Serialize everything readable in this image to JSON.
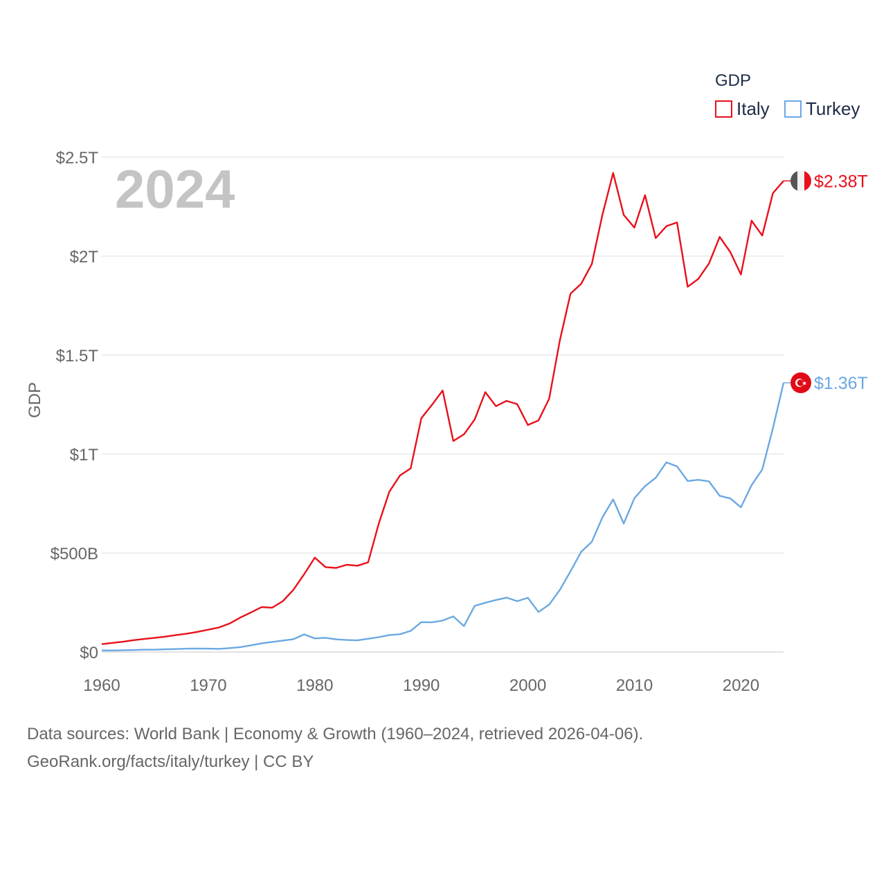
{
  "chart_data": {
    "type": "line",
    "title": "",
    "ylabel": "GDP",
    "xlabel": "",
    "current_year": "2024",
    "legend_title": "GDP",
    "xlim": [
      1960,
      2024
    ],
    "ylim": [
      0,
      2500
    ],
    "y_unit": "billion USD",
    "y_ticks": [
      0,
      500,
      1000,
      1500,
      2000,
      2500
    ],
    "y_tick_labels": [
      "$0",
      "$500B",
      "$1T",
      "$1.5T",
      "$2T",
      "$2.5T"
    ],
    "x_ticks": [
      1960,
      1970,
      1980,
      1990,
      2000,
      2010,
      2020
    ],
    "x_tick_labels": [
      "1960",
      "1970",
      "1980",
      "1990",
      "2000",
      "2010",
      "2020"
    ],
    "grid": true,
    "legend_position": "top-right",
    "years": [
      1960,
      1961,
      1962,
      1963,
      1964,
      1965,
      1966,
      1967,
      1968,
      1969,
      1970,
      1971,
      1972,
      1973,
      1974,
      1975,
      1976,
      1977,
      1978,
      1979,
      1980,
      1981,
      1982,
      1983,
      1984,
      1985,
      1986,
      1987,
      1988,
      1989,
      1990,
      1991,
      1992,
      1993,
      1994,
      1995,
      1996,
      1997,
      1998,
      1999,
      2000,
      2001,
      2002,
      2003,
      2004,
      2005,
      2006,
      2007,
      2008,
      2009,
      2010,
      2011,
      2012,
      2013,
      2014,
      2015,
      2016,
      2017,
      2018,
      2019,
      2020,
      2021,
      2022,
      2023,
      2024
    ],
    "series": [
      {
        "name": "Italy",
        "color": "#e8101a",
        "end_label": "$2.38T",
        "flag_icon": "italy-flag-icon",
        "values": [
          40,
          46,
          52,
          60,
          66,
          72,
          78,
          86,
          93,
          102,
          113,
          124,
          144,
          174,
          200,
          227,
          224,
          257,
          315,
          393,
          477,
          429,
          425,
          441,
          436,
          453,
          649,
          810,
          892,
          928,
          1181,
          1249,
          1321,
          1066,
          1100,
          1174,
          1313,
          1242,
          1269,
          1252,
          1147,
          1170,
          1280,
          1574,
          1810,
          1860,
          1960,
          2210,
          2420,
          2208,
          2144,
          2308,
          2091,
          2151,
          2170,
          1845,
          1885,
          1963,
          2097,
          2021,
          1907,
          2179,
          2104,
          2318,
          2380
        ]
      },
      {
        "name": "Turkey",
        "color": "#6aa8e2",
        "end_label": "$1.36T",
        "flag_icon": "turkey-flag-icon",
        "values": [
          8,
          8,
          9,
          10,
          12,
          12,
          14,
          15,
          17,
          18,
          17,
          16,
          20,
          25,
          34,
          44,
          51,
          58,
          65,
          89,
          69,
          72,
          64,
          61,
          59,
          67,
          75,
          86,
          90,
          107,
          151,
          150,
          159,
          180,
          131,
          233,
          249,
          263,
          275,
          257,
          274,
          202,
          240,
          314,
          408,
          506,
          557,
          681,
          771,
          649,
          777,
          838,
          880,
          958,
          938,
          864,
          870,
          862,
          789,
          776,
          731,
          843,
          922,
          1130,
          1360
        ]
      }
    ]
  },
  "source": {
    "line1": "Data sources: World Bank | Economy & Growth (1960–2024, retrieved 2026-04-06).",
    "line2": "GeoRank.org/facts/italy/turkey | CC BY"
  }
}
